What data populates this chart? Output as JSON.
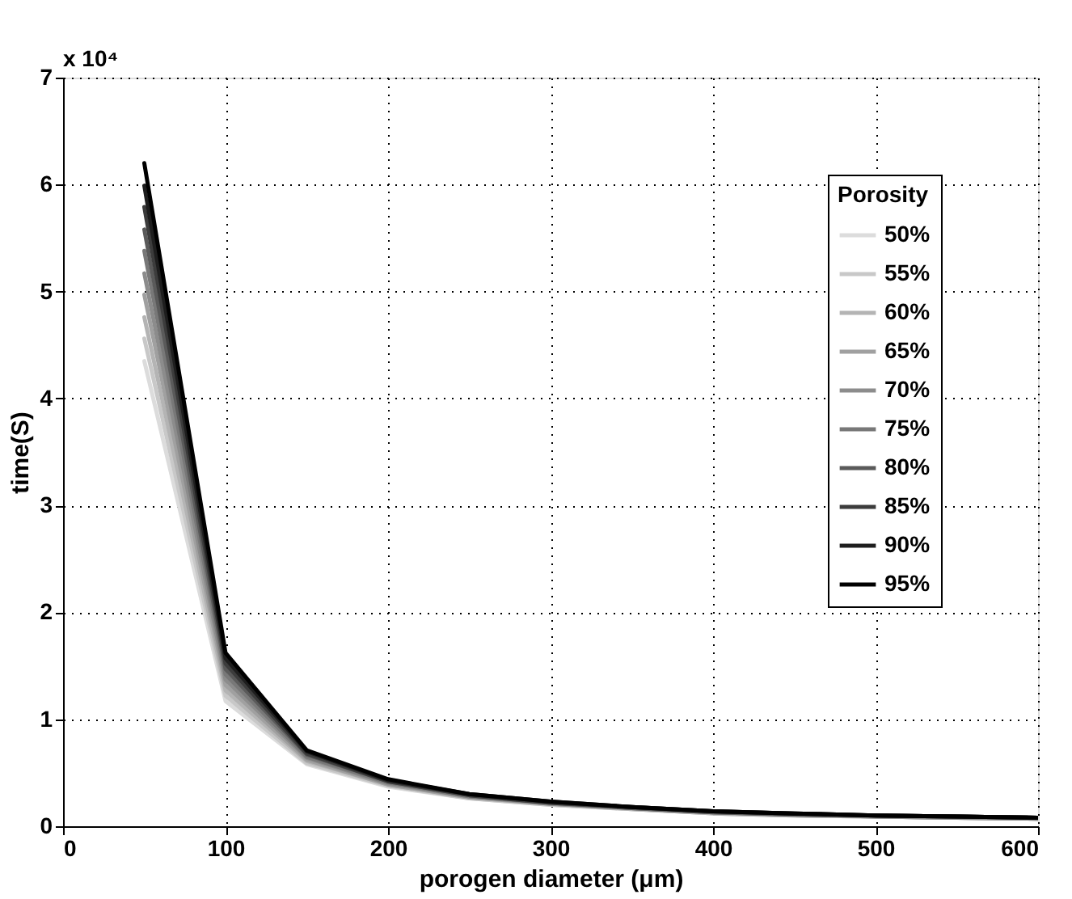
{
  "chart_data": {
    "type": "line",
    "xlabel": "porogen diameter (μm)",
    "ylabel": "time(S)",
    "legend_title": "Porosity",
    "annotations": [
      "x 10⁴"
    ],
    "x": [
      50,
      100,
      150,
      200,
      250,
      300,
      350,
      400,
      450,
      500,
      550,
      600
    ],
    "xlim": [
      0,
      600
    ],
    "xticks": [
      0,
      100,
      200,
      300,
      400,
      500,
      600
    ],
    "ylim": [
      0,
      7
    ],
    "yticks": [
      0,
      1,
      2,
      3,
      4,
      5,
      6,
      7
    ],
    "grid": true,
    "legend": "top right",
    "marker": "none",
    "line_style": "solid",
    "series": [
      {
        "name": "50%",
        "color": "#dcdcdc",
        "values": [
          4.35,
          1.17,
          0.58,
          0.37,
          0.26,
          0.2,
          0.16,
          0.12,
          0.1,
          0.09,
          0.08,
          0.07
        ]
      },
      {
        "name": "55%",
        "color": "#c8c8c8",
        "values": [
          4.56,
          1.22,
          0.59,
          0.38,
          0.26,
          0.2,
          0.16,
          0.12,
          0.1,
          0.09,
          0.08,
          0.07
        ]
      },
      {
        "name": "60%",
        "color": "#b4b4b4",
        "values": [
          4.76,
          1.27,
          0.61,
          0.39,
          0.27,
          0.21,
          0.16,
          0.12,
          0.1,
          0.09,
          0.08,
          0.07
        ]
      },
      {
        "name": "65%",
        "color": "#a0a0a0",
        "values": [
          4.97,
          1.32,
          0.62,
          0.39,
          0.27,
          0.21,
          0.17,
          0.13,
          0.11,
          0.09,
          0.08,
          0.07
        ]
      },
      {
        "name": "70%",
        "color": "#8c8c8c",
        "values": [
          5.17,
          1.37,
          0.64,
          0.4,
          0.28,
          0.21,
          0.17,
          0.13,
          0.11,
          0.09,
          0.08,
          0.07
        ]
      },
      {
        "name": "75%",
        "color": "#787878",
        "values": [
          5.38,
          1.42,
          0.65,
          0.41,
          0.28,
          0.22,
          0.17,
          0.13,
          0.11,
          0.1,
          0.09,
          0.08
        ]
      },
      {
        "name": "80%",
        "color": "#5a5a5a",
        "values": [
          5.58,
          1.47,
          0.67,
          0.42,
          0.29,
          0.22,
          0.17,
          0.13,
          0.11,
          0.1,
          0.09,
          0.08
        ]
      },
      {
        "name": "85%",
        "color": "#3c3c3c",
        "values": [
          5.79,
          1.52,
          0.68,
          0.42,
          0.29,
          0.22,
          0.18,
          0.14,
          0.12,
          0.1,
          0.09,
          0.08
        ]
      },
      {
        "name": "90%",
        "color": "#1e1e1e",
        "values": [
          5.99,
          1.57,
          0.7,
          0.43,
          0.3,
          0.23,
          0.18,
          0.14,
          0.12,
          0.1,
          0.09,
          0.08
        ]
      },
      {
        "name": "95%",
        "color": "#000000",
        "values": [
          6.2,
          1.62,
          0.71,
          0.44,
          0.3,
          0.23,
          0.18,
          0.14,
          0.12,
          0.1,
          0.09,
          0.08
        ]
      }
    ]
  }
}
